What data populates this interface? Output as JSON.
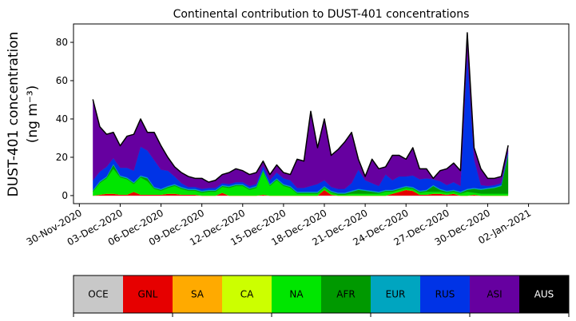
{
  "chart_data": {
    "type": "stacked_area",
    "title": "Continental contribution to DUST-401 concentrations",
    "ylabel": "DUST-401 concentration",
    "ylabel_unit": "(ng m⁻³)",
    "xlim": [
      -0.43,
      35.96
    ],
    "xticks": [
      {
        "value": 0,
        "label": "30-Nov-2020"
      },
      {
        "value": 3,
        "label": "03-Dec-2020"
      },
      {
        "value": 6,
        "label": "06-Dec-2020"
      },
      {
        "value": 9,
        "label": "09-Dec-2020"
      },
      {
        "value": 12,
        "label": "12-Dec-2020"
      },
      {
        "value": 15,
        "label": "15-Dec-2020"
      },
      {
        "value": 18,
        "label": "18-Dec-2020"
      },
      {
        "value": 21,
        "label": "21-Dec-2020"
      },
      {
        "value": 24,
        "label": "24-Dec-2020"
      },
      {
        "value": 27,
        "label": "27-Dec-2020"
      },
      {
        "value": 30,
        "label": "30-Dec-2020"
      },
      {
        "value": 33,
        "label": "02-Jan-2021"
      }
    ],
    "ylim": [
      -4.2,
      89.6
    ],
    "yticks": [
      0,
      20,
      40,
      60,
      80
    ],
    "x": [
      1,
      1.5,
      2,
      2.5,
      3,
      3.5,
      4,
      4.5,
      5,
      5.5,
      6,
      6.5,
      7,
      7.5,
      8,
      8.5,
      9,
      9.5,
      10,
      10.5,
      11,
      11.5,
      12,
      12.5,
      13,
      13.5,
      14,
      14.5,
      15,
      15.5,
      16,
      16.5,
      17,
      17.5,
      18,
      18.5,
      19,
      19.5,
      20,
      20.5,
      21,
      21.5,
      22,
      22.5,
      23,
      23.5,
      24,
      24.5,
      25,
      25.5,
      26,
      26.5,
      27,
      27.5,
      28,
      28.5,
      29,
      29.5,
      30,
      30.5,
      31,
      31.5
    ],
    "series": [
      {
        "name": "OCE",
        "color": "#c8c8c8",
        "values": [
          0,
          0,
          0,
          0,
          0,
          0,
          0,
          0,
          0,
          0,
          0,
          0,
          0,
          0,
          0,
          0,
          0,
          0,
          0,
          0,
          0,
          0,
          0,
          0,
          0,
          0,
          0,
          0,
          0,
          0,
          0,
          0,
          0,
          0,
          0,
          0,
          0,
          0,
          0,
          0,
          0,
          0,
          0,
          0,
          0,
          0,
          0,
          0,
          0,
          0,
          0,
          0,
          0,
          0,
          0,
          0,
          0,
          0,
          0,
          0,
          0,
          0
        ]
      },
      {
        "name": "GNL",
        "color": "#e60000",
        "values": [
          0,
          0.5,
          1,
          1,
          0.5,
          0.5,
          2,
          0.5,
          0.5,
          0.5,
          0.5,
          1,
          1,
          0.5,
          0.5,
          0.5,
          0,
          0,
          0,
          1.5,
          0,
          0,
          0,
          0,
          0,
          0.5,
          0,
          0,
          0,
          0,
          0,
          0,
          0,
          0,
          3,
          0.5,
          0,
          0,
          0,
          0,
          0,
          0,
          0,
          0,
          1,
          2,
          3,
          2.5,
          0.5,
          0.5,
          1,
          1,
          0.5,
          1,
          0,
          0,
          0.5,
          0,
          0,
          0,
          0,
          0
        ]
      },
      {
        "name": "SA",
        "color": "#ffaa00",
        "values": [
          0,
          0,
          0,
          0,
          0,
          0,
          0,
          0,
          0,
          0,
          0,
          0,
          0,
          0,
          0,
          0,
          0,
          0,
          0,
          0,
          0,
          0,
          0,
          0,
          0,
          0,
          0,
          0,
          0,
          0,
          0,
          0,
          0,
          0,
          0,
          0,
          0,
          0,
          0,
          0,
          0,
          0,
          0,
          0,
          0,
          0,
          0,
          0,
          0,
          0,
          0,
          0,
          0,
          0,
          0,
          0,
          0,
          0,
          0,
          0,
          0,
          0
        ]
      },
      {
        "name": "CA",
        "color": "#ccff00",
        "values": [
          0,
          0,
          0,
          0,
          0,
          0,
          0,
          0,
          0,
          0,
          0,
          0,
          0,
          0,
          0,
          0,
          0,
          0,
          0,
          0,
          0,
          0,
          0,
          0,
          0,
          0,
          0,
          0,
          0,
          0,
          0,
          0,
          0,
          0,
          0,
          0,
          0,
          0,
          0,
          0,
          0,
          0,
          0,
          0,
          0,
          0,
          0,
          0,
          0,
          0,
          0,
          0,
          0,
          0,
          0,
          0,
          0,
          0,
          0,
          0,
          0,
          0
        ]
      },
      {
        "name": "NA",
        "color": "#00e600",
        "values": [
          2,
          6,
          8,
          13,
          9,
          8,
          4,
          9,
          7,
          3,
          2,
          3,
          4,
          3,
          2,
          2,
          1.5,
          2,
          2,
          3,
          4,
          5,
          5,
          3,
          4,
          12,
          5,
          8,
          5,
          4,
          1,
          1,
          1,
          1,
          1,
          1,
          0.5,
          0.5,
          1,
          1,
          1,
          1,
          1,
          2,
          1,
          1,
          1,
          1,
          1,
          1.5,
          1,
          1,
          1,
          1,
          1,
          2,
          1,
          1,
          1,
          1,
          1,
          1
        ]
      },
      {
        "name": "AFR",
        "color": "#009900",
        "values": [
          0.5,
          0.5,
          0.5,
          2,
          0.5,
          0.5,
          0.5,
          0.5,
          1.5,
          0.5,
          0.5,
          0.5,
          0.5,
          0.5,
          0.5,
          0.5,
          0.5,
          0.5,
          0.5,
          0.5,
          0.5,
          0.5,
          0.5,
          0.5,
          0.5,
          0.5,
          0.5,
          0.5,
          0.5,
          0.5,
          0.5,
          0.5,
          0.5,
          0.5,
          0.5,
          0.5,
          0.5,
          0.5,
          1,
          2,
          1.5,
          1,
          0.5,
          0.5,
          0.5,
          0.5,
          0.5,
          0.5,
          0.5,
          0.5,
          3,
          1,
          0.5,
          0.5,
          0.5,
          1,
          2,
          2,
          2.5,
          3,
          4,
          20
        ]
      },
      {
        "name": "EUR",
        "color": "#00a5c0",
        "values": [
          0.5,
          0.5,
          0.5,
          0.5,
          0.5,
          0.5,
          0.5,
          0.5,
          0.5,
          0.5,
          0.5,
          0.5,
          0.5,
          0.5,
          0.5,
          0.5,
          0.5,
          0.5,
          0.5,
          0.5,
          0.5,
          0.5,
          0.5,
          0.5,
          0.5,
          0.5,
          0.5,
          0.5,
          0.5,
          0.5,
          0.5,
          0.5,
          0.5,
          0.5,
          0.5,
          0.5,
          0.5,
          0.5,
          0.5,
          0.5,
          0.5,
          0.5,
          0.5,
          0.5,
          0.5,
          0.5,
          0.5,
          0.5,
          0.5,
          0.5,
          0.5,
          0.5,
          0.5,
          0.5,
          0.5,
          0.5,
          0.5,
          0.5,
          0.5,
          0.5,
          0.5,
          1
        ]
      },
      {
        "name": "RUS",
        "color": "#0033e6",
        "values": [
          5,
          5,
          5,
          3,
          4,
          5,
          6,
          15,
          14,
          14,
          10,
          8,
          4,
          2,
          1,
          1,
          1,
          1,
          1,
          1,
          1,
          1,
          1,
          1,
          1,
          2,
          2,
          3,
          3,
          3,
          2,
          2,
          3,
          4,
          3,
          2,
          2,
          2,
          4,
          10,
          5,
          4,
          3,
          8,
          5,
          6,
          5,
          6,
          6,
          6,
          3,
          4,
          3,
          4,
          3,
          70,
          15,
          2,
          1,
          1,
          1,
          1
        ]
      },
      {
        "name": "ASI",
        "color": "#6600a0",
        "values": [
          42,
          23.5,
          17,
          13.5,
          11.5,
          16.5,
          19,
          14.5,
          9.5,
          14.5,
          12.5,
          7,
          5,
          5.5,
          5.5,
          4.5,
          5.5,
          3,
          4,
          4.5,
          6,
          7,
          6,
          6,
          6,
          2.5,
          3,
          4,
          3,
          3,
          15,
          14,
          39,
          19,
          32,
          16.5,
          20.5,
          24.5,
          26.5,
          5.5,
          2,
          12.5,
          9,
          4,
          13,
          11,
          9,
          14.5,
          5.5,
          5,
          0.5,
          5.5,
          8.5,
          10,
          8,
          11.5,
          6,
          8.5,
          4,
          3.5,
          3.5,
          3
        ]
      },
      {
        "name": "AUS",
        "color": "#000000",
        "values": [
          0,
          0,
          0,
          0,
          0,
          0,
          0,
          0,
          0,
          0,
          0,
          0,
          0,
          0,
          0,
          0,
          0,
          0,
          0,
          0,
          0,
          0,
          0,
          0,
          0,
          0,
          0,
          0,
          0,
          0,
          0,
          0,
          0,
          0,
          0,
          0,
          0,
          0,
          0,
          0,
          0,
          0,
          0,
          0,
          0,
          0,
          0,
          0,
          0,
          0,
          0,
          0,
          0,
          0,
          0,
          0,
          0,
          0,
          0,
          0,
          0,
          0
        ]
      }
    ]
  }
}
